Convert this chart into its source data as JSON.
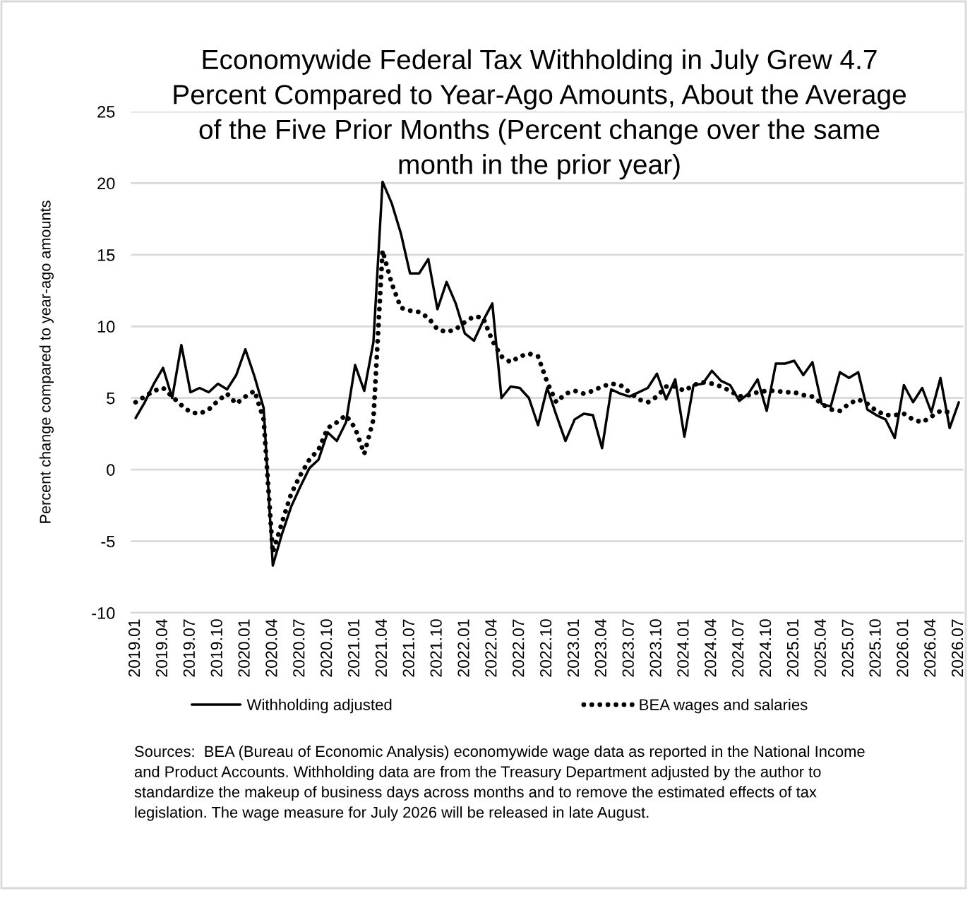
{
  "chart_data": {
    "type": "line",
    "title": "Economywide Federal Tax Withholding in July Grew 4.7\nPercent Compared to Year-Ago Amounts, About the Average\nof the Five Prior Months (Percent change over the same\nmonth in the prior year)",
    "ylabel": "Percent change compared to year-ago amounts",
    "annotations": [
      "Sources:  BEA (Bureau of Economic Analysis) economywide wage data as reported in the National Income\nand Product Accounts. Withholding data are from the Treasury Department adjusted by the author to\nstandardize the makeup of business days across months and to remove the estimated effects of tax\nlegislation. The wage measure for July 2026 will be released in late August."
    ],
    "categories": [
      "2019.01",
      null,
      null,
      "2019.04",
      null,
      null,
      "2019.07",
      null,
      null,
      "2019.10",
      null,
      null,
      "2020.01",
      null,
      null,
      "2020.04",
      null,
      null,
      "2020.07",
      null,
      null,
      "2020.10",
      null,
      null,
      "2021.01",
      null,
      null,
      "2021.04",
      null,
      null,
      "2021.07",
      null,
      null,
      "2021.10",
      null,
      null,
      "2022.01",
      null,
      null,
      "2022.04",
      null,
      null,
      "2022.07",
      null,
      null,
      "2022.10",
      null,
      null,
      "2023.01",
      null,
      null,
      "2023.04",
      null,
      null,
      "2023.07",
      null,
      null,
      "2023.10",
      null,
      null,
      "2024.01",
      null,
      null,
      "2024.04",
      null,
      null,
      "2024.07",
      null,
      null,
      "2024.10",
      null,
      null,
      "2025.01",
      null,
      null,
      "2025.04",
      null,
      null,
      "2025.07",
      null,
      null,
      "2025.10",
      null,
      null,
      "2026.01",
      null,
      null,
      "2026.04",
      null,
      null,
      "2026.07"
    ],
    "series": [
      {
        "name": "Withholding adjusted",
        "color": "#000000",
        "line_style": "solid",
        "values": [
          3.6,
          4.7,
          6.0,
          7.1,
          5.0,
          8.7,
          5.4,
          5.7,
          5.4,
          6.0,
          5.6,
          6.6,
          8.4,
          6.5,
          4.3,
          -6.7,
          -4.5,
          -2.6,
          -1.2,
          0.1,
          0.7,
          2.6,
          2.0,
          3.3,
          7.3,
          5.5,
          8.9,
          20.1,
          18.6,
          16.5,
          13.7,
          13.7,
          14.7,
          11.2,
          13.1,
          11.6,
          9.5,
          9.0,
          10.4,
          11.6,
          5.0,
          5.8,
          5.7,
          5.0,
          3.1,
          5.7,
          3.8,
          2.0,
          3.5,
          3.9,
          3.8,
          1.5,
          5.6,
          5.3,
          5.1,
          5.4,
          5.7,
          6.7,
          4.9,
          6.3,
          2.3,
          5.9,
          6.0,
          6.9,
          6.2,
          5.9,
          4.8,
          5.3,
          6.3,
          4.1,
          7.4,
          7.4,
          7.6,
          6.6,
          7.5,
          4.6,
          4.4,
          6.8,
          6.4,
          6.8,
          4.2,
          3.8,
          3.5,
          2.2,
          5.9,
          4.7,
          5.7,
          4.0,
          6.4,
          2.9,
          4.7
        ]
      },
      {
        "name": "BEA wages and salaries",
        "color": "#000000",
        "line_style": "dotted",
        "values": [
          4.7,
          5.1,
          5.5,
          5.7,
          5.1,
          4.5,
          4.0,
          3.9,
          4.2,
          4.8,
          5.3,
          4.6,
          5.1,
          5.5,
          3.5,
          -5.8,
          -3.7,
          -1.7,
          -0.4,
          0.7,
          1.4,
          2.9,
          3.3,
          3.8,
          2.9,
          1.1,
          3.5,
          15.3,
          13.0,
          11.3,
          11.1,
          11.0,
          10.6,
          9.8,
          9.6,
          9.8,
          10.3,
          10.7,
          10.6,
          9.0,
          7.9,
          7.5,
          7.9,
          8.1,
          7.9,
          6.1,
          4.7,
          5.3,
          5.5,
          5.3,
          5.5,
          5.8,
          6.0,
          5.9,
          5.4,
          4.9,
          4.7,
          5.1,
          5.8,
          5.8,
          5.5,
          5.9,
          6.1,
          6.0,
          5.8,
          5.5,
          5.1,
          5.2,
          5.4,
          5.5,
          5.5,
          5.4,
          5.4,
          5.2,
          5.1,
          4.6,
          4.2,
          4.1,
          4.6,
          4.9,
          4.6,
          4.1,
          3.8,
          3.8,
          3.9,
          3.5,
          3.3,
          3.7,
          4.1,
          4.0,
          null
        ]
      }
    ],
    "ylim": [
      -10,
      25
    ],
    "yticks": [
      -10,
      -5,
      0,
      5,
      10,
      15,
      20,
      25
    ],
    "grid": "y",
    "legend": "bottom"
  }
}
